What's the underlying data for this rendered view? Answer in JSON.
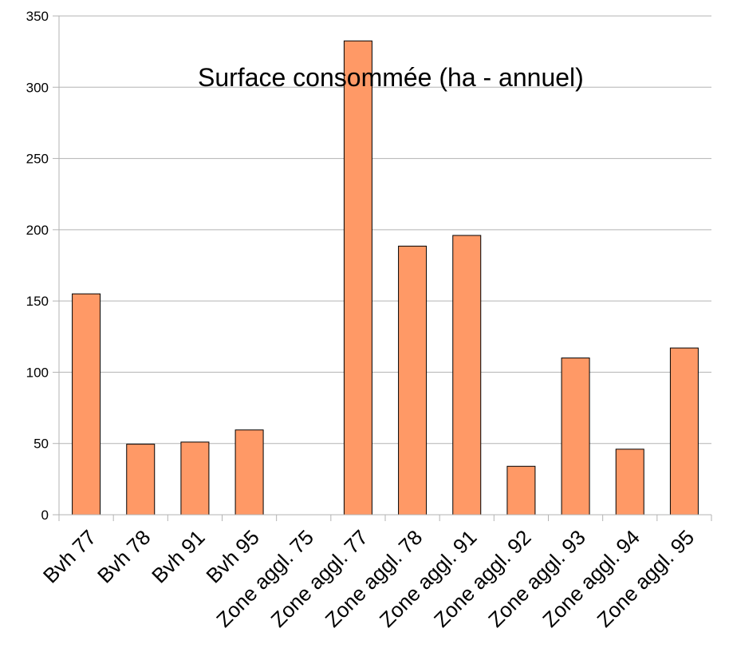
{
  "chart_data": {
    "type": "bar",
    "title": "Surface consommée (ha - annuel)",
    "xlabel": "",
    "ylabel": "",
    "ylim": [
      0,
      350
    ],
    "yticks": [
      0,
      50,
      100,
      150,
      200,
      250,
      300,
      350
    ],
    "grid": true,
    "legend": "none",
    "categories": [
      "Bvh 77",
      "Bvh 78",
      "Bvh 91",
      "Bvh 95",
      "Zone aggl. 75",
      "Zone aggl. 77",
      "Zone aggl. 78",
      "Zone aggl. 91",
      "Zone aggl. 92",
      "Zone aggl. 93",
      "Zone aggl. 94",
      "Zone aggl. 95"
    ],
    "values": [
      155,
      49.5,
      51,
      59.5,
      0,
      332.5,
      188.5,
      196,
      34,
      110,
      46,
      117
    ],
    "bar_color": "#ff9966",
    "bar_stroke": "#000000",
    "grid_color": "#b3b3b3"
  }
}
